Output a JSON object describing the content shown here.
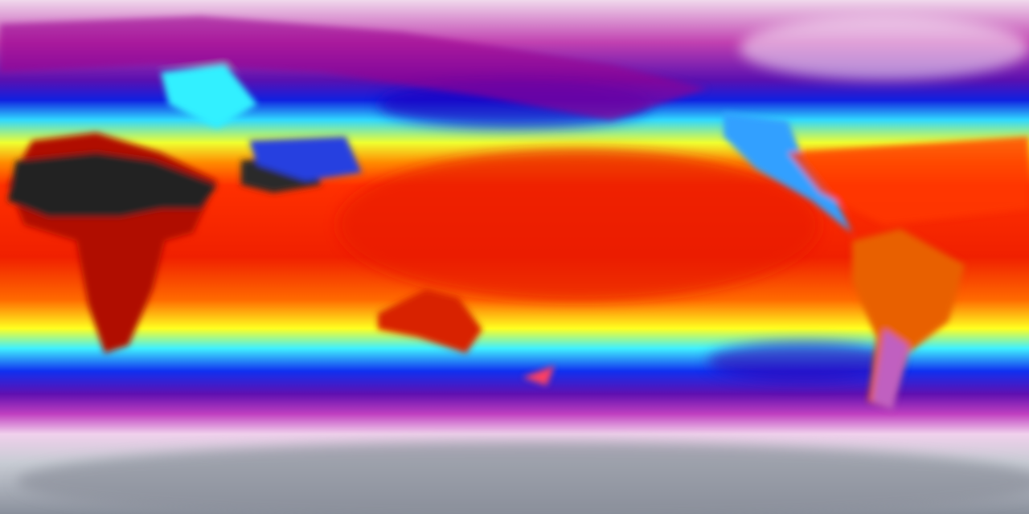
{
  "map": {
    "projection": "equirectangular",
    "view": "global",
    "colormap": [
      "#ffffff",
      "#e8b0e0",
      "#a0109a",
      "#3a00c0",
      "#0010ff",
      "#20c0ff",
      "#40ffff",
      "#ffff00",
      "#ff9000",
      "#ff2000",
      "#c00000",
      "#400000",
      "#202020",
      "#a0a0a0"
    ],
    "latitude_bands": [
      {
        "lat": 90,
        "color": "#f0d8ec"
      },
      {
        "lat": 75,
        "color": "#c040b0"
      },
      {
        "lat": 62,
        "color": "#5a10b0"
      },
      {
        "lat": 55,
        "color": "#1020e0"
      },
      {
        "lat": 48,
        "color": "#30d8ff"
      },
      {
        "lat": 40,
        "color": "#f0ff30"
      },
      {
        "lat": 33,
        "color": "#ff8a00"
      },
      {
        "lat": 25,
        "color": "#ff3000"
      },
      {
        "lat": 0,
        "color": "#f02000"
      },
      {
        "lat": -15,
        "color": "#ff6a00"
      },
      {
        "lat": -25,
        "color": "#ffff20"
      },
      {
        "lat": -32,
        "color": "#40f0ff"
      },
      {
        "lat": -40,
        "color": "#1030f0"
      },
      {
        "lat": -48,
        "color": "#6010b0"
      },
      {
        "lat": -55,
        "color": "#c040c0"
      },
      {
        "lat": -62,
        "color": "#f0d0ec"
      },
      {
        "lat": -72,
        "color": "#c8ccd4"
      },
      {
        "lat": -90,
        "color": "#8a909c"
      }
    ],
    "features": {
      "hot_desert_color": "#202020",
      "highland_color": "#3050e0",
      "land_warm_color": "#c01000"
    }
  }
}
